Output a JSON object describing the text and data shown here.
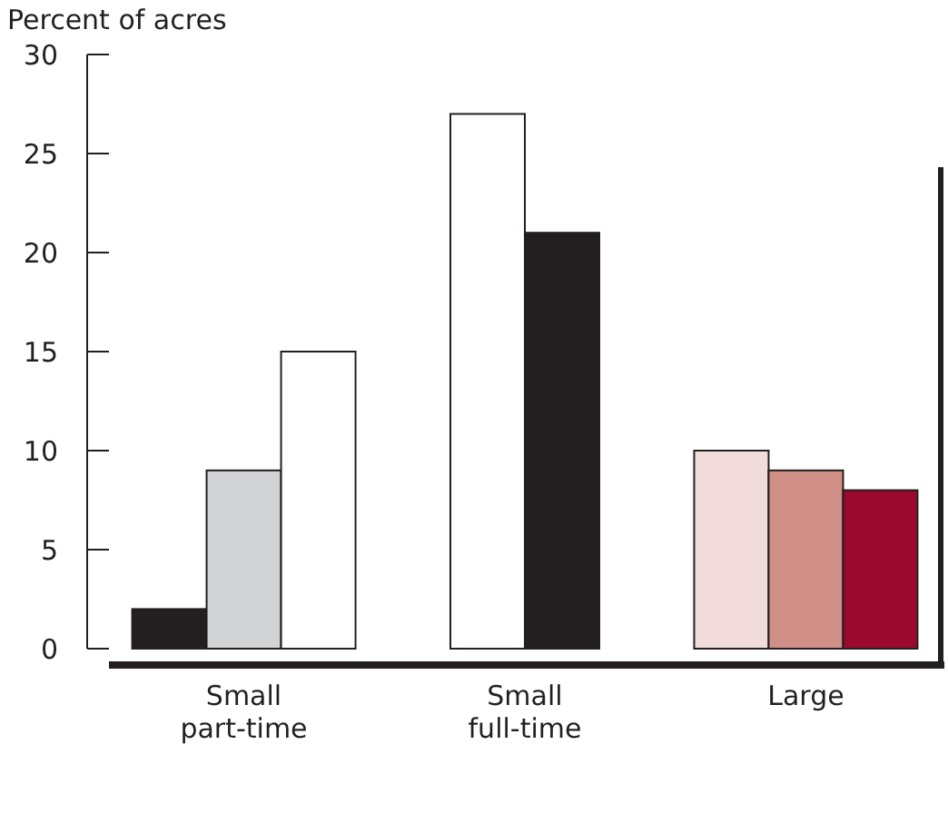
{
  "chart_data": {
    "type": "bar",
    "ylabel": "Percent of acres",
    "categories": [
      "Small\npart-time",
      "Small\nfull-time",
      "Large"
    ],
    "series": [
      {
        "colors": [
          "#231f20",
          "#ffffff",
          "#f2dcdb"
        ],
        "values": [
          2,
          27,
          10
        ]
      },
      {
        "colors": [
          "#d1d3d4",
          "#231f20",
          "#d09088"
        ],
        "values": [
          9,
          21,
          9
        ]
      },
      {
        "colors": [
          "#ffffff",
          null,
          "#9b0a2e"
        ],
        "values": [
          15,
          null,
          8
        ]
      }
    ],
    "ylim": [
      0,
      30
    ],
    "yticks": [
      0,
      5,
      10,
      15,
      20,
      25,
      30
    ],
    "grid": false
  }
}
